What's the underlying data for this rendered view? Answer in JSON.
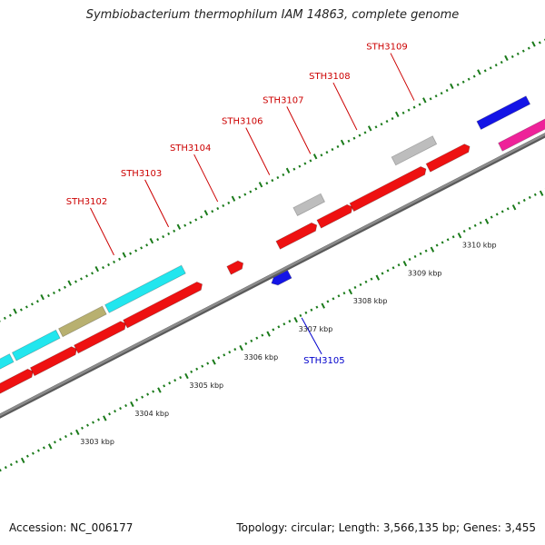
{
  "title": "Symbiobacterium thermophilum IAM 14863, complete genome",
  "footer": {
    "accession": "Accession: NC_006177",
    "summary": "Topology: circular; Length: 3,566,135 bp; Genes: 3,455"
  },
  "colors": {
    "backbone": "#8c8c8c",
    "tick_major": "#1a7a1a",
    "tick_minor": "#1a7a1a",
    "label_forward": "#cc0000",
    "label_reverse": "#0000cc",
    "red": "#ee1111",
    "cyan": "#22e6ee",
    "olive": "#b8b070",
    "gray": "#bdbdbd",
    "blue": "#1414e6",
    "magenta": "#ee2299"
  },
  "scale_labels": [
    {
      "kbp": 3303,
      "text": "3303 kbp"
    },
    {
      "kbp": 3304,
      "text": "3304 kbp"
    },
    {
      "kbp": 3305,
      "text": "3305 kbp"
    },
    {
      "kbp": 3306,
      "text": "3306 kbp"
    },
    {
      "kbp": 3307,
      "text": "3307 kbp"
    },
    {
      "kbp": 3308,
      "text": "3308 kbp"
    },
    {
      "kbp": 3309,
      "text": "3309 kbp"
    },
    {
      "kbp": 3310,
      "text": "3310 kbp"
    }
  ],
  "gene_labels": [
    {
      "text": "STH3102",
      "strand": "forward",
      "kbp": 3304.85
    },
    {
      "text": "STH3103",
      "strand": "forward",
      "kbp": 3305.85
    },
    {
      "text": "STH3104",
      "strand": "forward",
      "kbp": 3306.75
    },
    {
      "text": "STH3105",
      "strand": "reverse",
      "kbp": 3307.1
    },
    {
      "text": "STH3106",
      "strand": "forward",
      "kbp": 3307.7
    },
    {
      "text": "STH3107",
      "strand": "forward",
      "kbp": 3308.45
    },
    {
      "text": "STH3108",
      "strand": "forward",
      "kbp": 3309.3
    },
    {
      "text": "STH3109",
      "strand": "forward",
      "kbp": 3310.35
    }
  ],
  "features": [
    {
      "track": 2,
      "start": 3302.0,
      "end": 3302.6,
      "color": "cyan"
    },
    {
      "track": 2,
      "start": 3302.65,
      "end": 3303.45,
      "color": "cyan"
    },
    {
      "track": 2,
      "start": 3303.5,
      "end": 3304.3,
      "color": "olive"
    },
    {
      "track": 2,
      "start": 3304.35,
      "end": 3305.75,
      "color": "cyan"
    },
    {
      "track": 2,
      "start": 3307.8,
      "end": 3308.3,
      "color": "gray"
    },
    {
      "track": 2,
      "start": 3309.6,
      "end": 3310.35,
      "color": "gray"
    },
    {
      "track": 2,
      "start": 3311.1,
      "end": 3312.0,
      "color": "blue"
    },
    {
      "track": 1,
      "start": 3302.0,
      "end": 3302.75,
      "color": "red",
      "arrow": "right"
    },
    {
      "track": 1,
      "start": 3302.8,
      "end": 3303.55,
      "color": "red",
      "arrow": "right"
    },
    {
      "track": 1,
      "start": 3303.6,
      "end": 3304.45,
      "color": "red",
      "arrow": "right"
    },
    {
      "track": 1,
      "start": 3304.5,
      "end": 3305.85,
      "color": "red",
      "arrow": "right"
    },
    {
      "track": 1,
      "start": 3306.4,
      "end": 3306.6,
      "color": "red",
      "arrow": "right"
    },
    {
      "track": 1,
      "start": 3307.3,
      "end": 3307.95,
      "color": "red",
      "arrow": "right"
    },
    {
      "track": 1,
      "start": 3308.05,
      "end": 3308.6,
      "color": "red",
      "arrow": "right"
    },
    {
      "track": 1,
      "start": 3308.65,
      "end": 3309.95,
      "color": "red",
      "arrow": "right"
    },
    {
      "track": 1,
      "start": 3310.05,
      "end": 3310.75,
      "color": "red",
      "arrow": "right"
    },
    {
      "track": -1,
      "start": 3307.0,
      "end": 3307.25,
      "color": "blue",
      "arrow": "left"
    },
    {
      "track": 1,
      "start": 3311.25,
      "end": 3312.4,
      "color": "magenta",
      "arrow": "right"
    }
  ]
}
